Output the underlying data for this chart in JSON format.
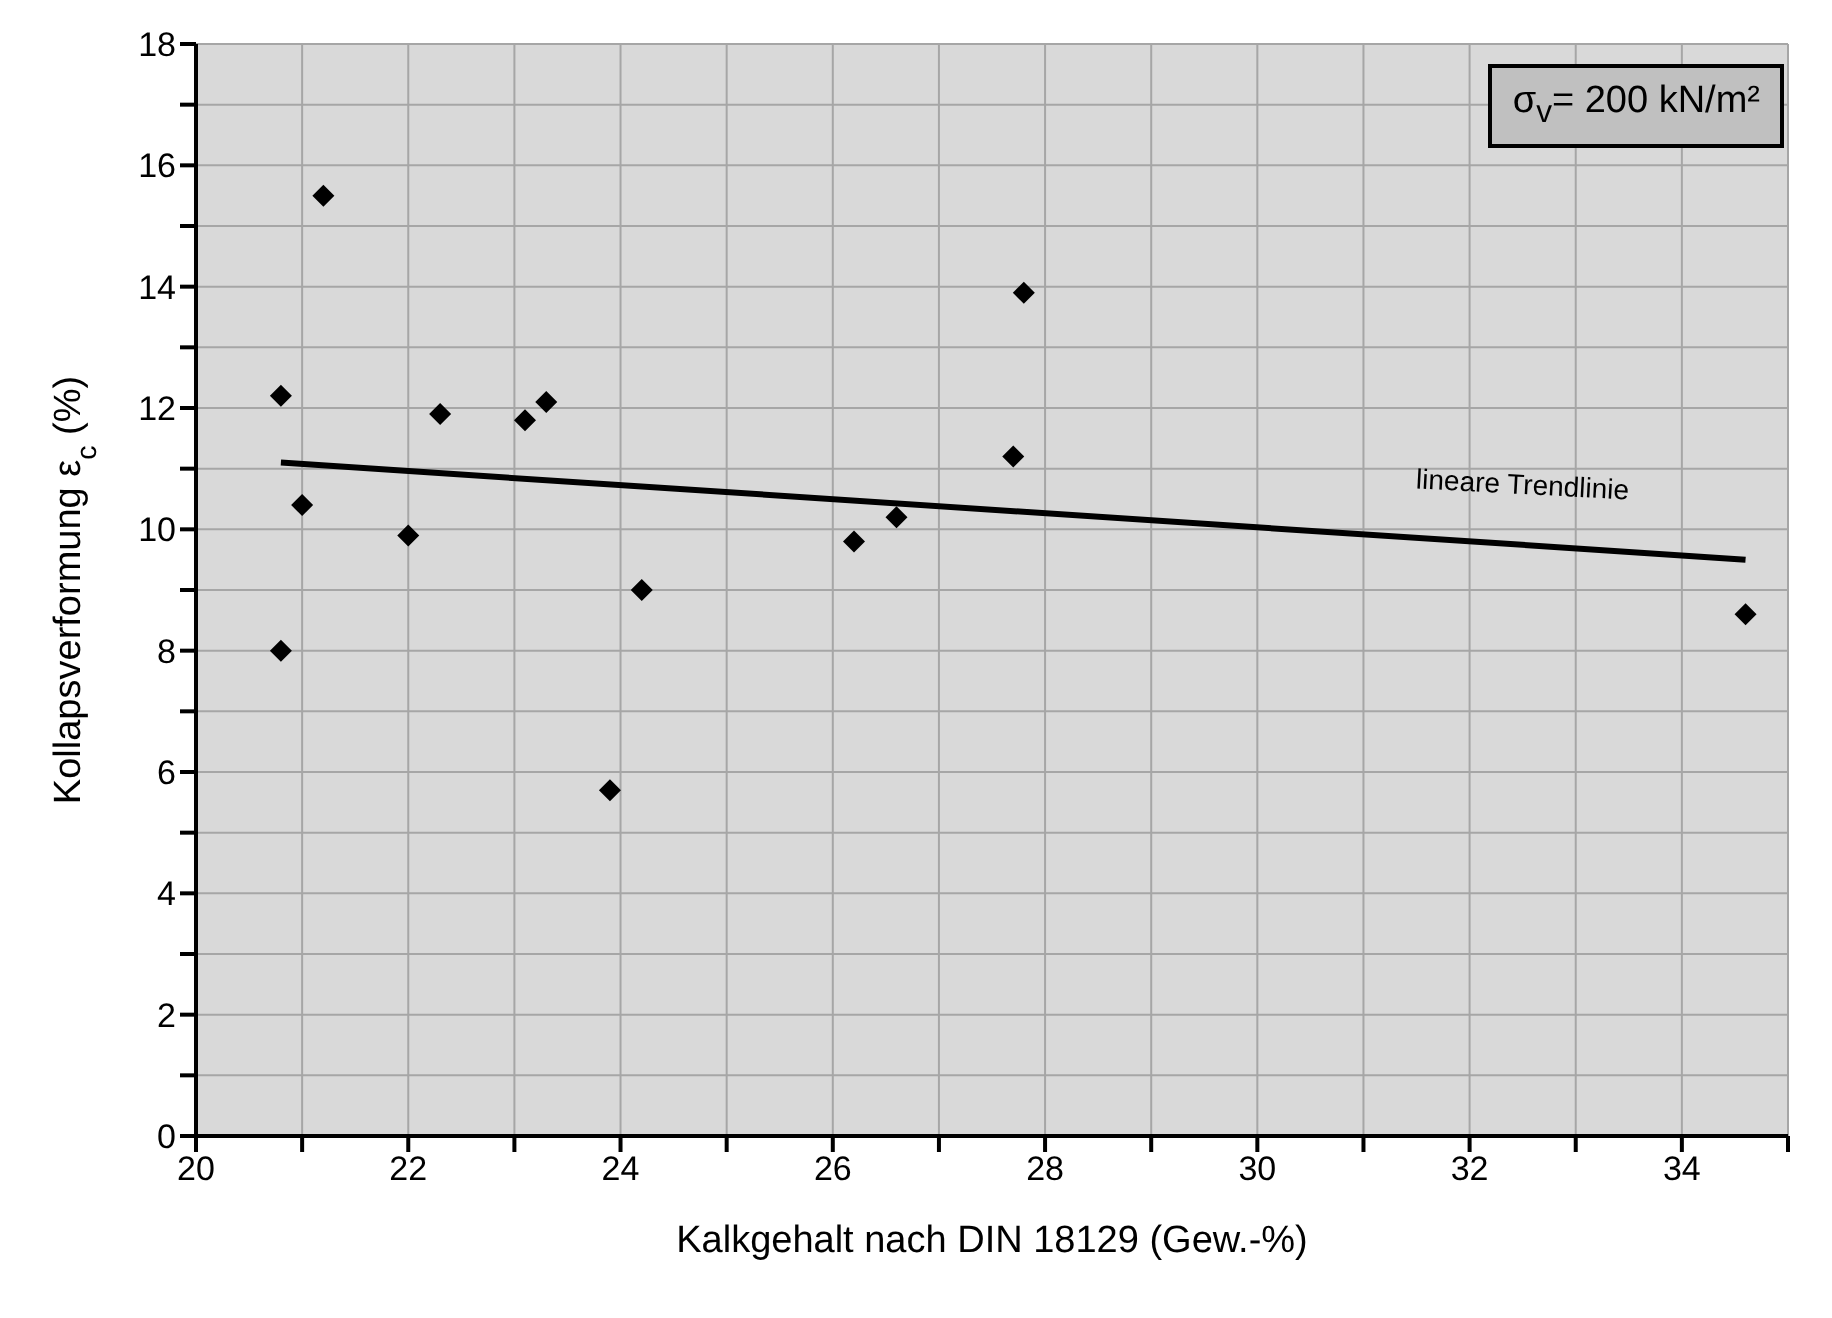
{
  "chart_data": {
    "type": "scatter",
    "xlabel": "Kalkgehalt nach DIN 18129 (Gew.-%)",
    "ylabel": "Kollapsverformung ε$_{c}$  (%)",
    "xlim": [
      20,
      35
    ],
    "xticks": [
      20,
      {
        "value": 21,
        "label": null
      },
      22,
      {
        "value": 23,
        "label": null
      },
      24,
      {
        "value": 25,
        "label": null
      },
      26,
      {
        "value": 27,
        "label": null
      },
      28,
      {
        "value": 29,
        "label": null
      },
      30,
      {
        "value": 31,
        "label": null
      },
      32,
      {
        "value": 33,
        "label": null
      },
      34,
      {
        "value": 35,
        "label": null
      }
    ],
    "ylim": [
      0,
      18
    ],
    "yticks": [
      0,
      {
        "value": 1,
        "label": null
      },
      2,
      {
        "value": 3,
        "label": null
      },
      4,
      {
        "value": 5,
        "label": null
      },
      6,
      {
        "value": 7,
        "label": null
      },
      8,
      {
        "value": 9,
        "label": null
      },
      10,
      {
        "value": 11,
        "label": null
      },
      12,
      {
        "value": 13,
        "label": null
      },
      14,
      {
        "value": 15,
        "label": null
      },
      16,
      {
        "value": 17,
        "label": null
      },
      18
    ],
    "grid": true,
    "legend": false,
    "series": [
      {
        "marker": "diamond",
        "color": "#000000",
        "x": [
          20.8,
          21.2,
          21.0,
          20.8,
          22.0,
          22.3,
          23.1,
          23.3,
          23.9,
          24.2,
          26.2,
          26.6,
          27.7,
          27.8,
          34.6
        ],
        "values": [
          12.2,
          15.5,
          10.4,
          8.0,
          9.9,
          11.9,
          11.8,
          12.1,
          5.7,
          9.0,
          9.8,
          10.2,
          11.2,
          13.9,
          8.6
        ]
      },
      {
        "type": "line",
        "marker": "none",
        "color": "#000000",
        "x": [
          20.8,
          34.6
        ],
        "values": [
          11.1,
          9.5
        ]
      }
    ],
    "annotations": [
      "lineare Trendlinie",
      "σ$_{v}$= 200 kN/m²"
    ]
  }
}
